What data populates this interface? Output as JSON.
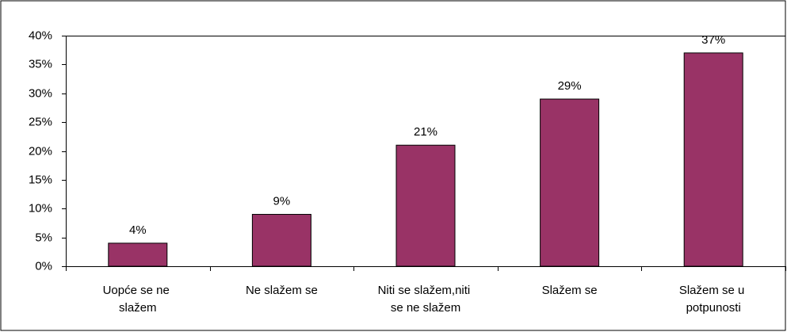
{
  "chart_data": {
    "type": "bar",
    "categories": [
      "Uopće se ne slažem",
      "Ne slažem se",
      "Niti se slažem,niti se ne slažem",
      "Slažem se",
      "Slažem se u potpunosti"
    ],
    "values": [
      4,
      9,
      21,
      29,
      37
    ],
    "value_labels": [
      "4%",
      "9%",
      "21%",
      "29%",
      "37%"
    ],
    "color": "#993366",
    "ylim": [
      0,
      40
    ],
    "yticks": [
      {
        "value": 0,
        "label": "0%"
      },
      {
        "value": 5,
        "label": "5%"
      },
      {
        "value": 10,
        "label": "10%"
      },
      {
        "value": 15,
        "label": "15%"
      },
      {
        "value": 20,
        "label": "20%"
      },
      {
        "value": 25,
        "label": "25%"
      },
      {
        "value": 30,
        "label": "30%"
      },
      {
        "value": 35,
        "label": "35%"
      },
      {
        "value": 40,
        "label": "40%"
      }
    ],
    "grid": false
  }
}
